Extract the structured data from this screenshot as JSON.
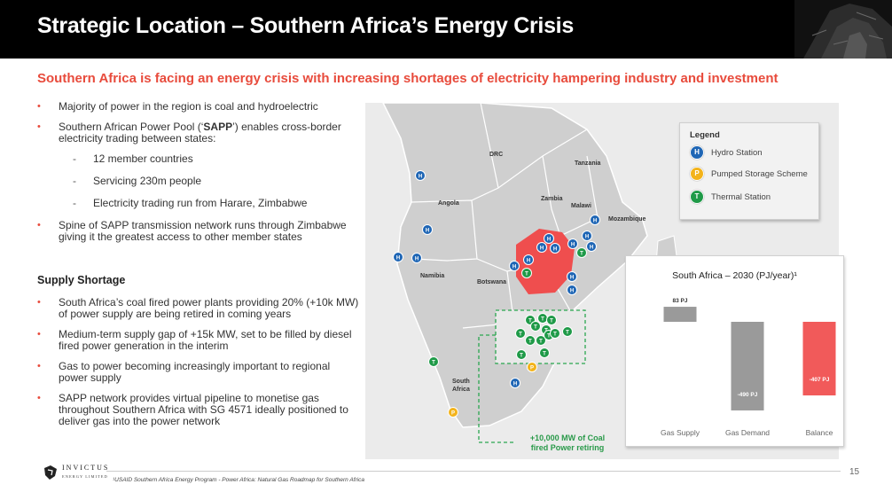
{
  "header": {
    "title": "Strategic Location – Southern Africa’s Energy Crisis"
  },
  "subtitle": "Southern Africa is facing an energy crisis with increasing shortages of electricity hampering industry and investment",
  "bullets": {
    "b1": "Majority of power in the region is coal and hydroelectric",
    "b2_pre": "Southern African Power Pool (‘",
    "b2_bold": "SAPP",
    "b2_post": "’) enables cross-border electricity trading between states:",
    "sub1": "12 member countries",
    "sub2": "Servicing 230m people",
    "sub3": "Electricity trading run from Harare, Zimbabwe",
    "b3": "Spine of SAPP transmission network runs through Zimbabwe giving it the greatest access to other member states",
    "supply_heading": "Supply Shortage",
    "s1": "South Africa’s coal fired power plants providing 20% (+10k MW) of power supply are being retired in coming years",
    "s2": "Medium-term supply gap of +15k MW, set to be filled by diesel fired power generation in the interim",
    "s3": "Gas to power becoming increasingly important to regional power supply",
    "s4": "SAPP network provides virtual pipeline to monetise gas throughout Southern Africa with SG 4571 ideally positioned to deliver gas into the power network"
  },
  "map": {
    "labels": {
      "drc": "DRC",
      "tanzania": "Tanzania",
      "angola": "Angola",
      "zambia": "Zambia",
      "malawi": "Malawi",
      "mozambique": "Mozambique",
      "namibia": "Namibia",
      "botswana": "Botswana",
      "south_africa_1": "South",
      "south_africa_2": "Africa"
    },
    "hydro_letter": "H",
    "pump_letter": "P",
    "thermal_letter": "T",
    "coal_note_1": "+10,000 MW of Coal",
    "coal_note_2": "fired Power retiring"
  },
  "legend": {
    "title": "Legend",
    "hydro": "Hydro Station",
    "pump": "Pumped Storage Scheme",
    "thermal": "Thermal Station"
  },
  "chart_data": {
    "type": "bar",
    "title": "South Africa – 2030 (PJ/year)¹",
    "categories": [
      "Gas Supply",
      "Gas Demand",
      "Balance"
    ],
    "values": [
      83,
      -490,
      -407
    ],
    "data_labels": [
      "83 PJ",
      "-490 PJ",
      "-407 PJ"
    ],
    "colors": [
      "#9a9a9a",
      "#9a9a9a",
      "#f15a5a"
    ],
    "ylim": [
      -500,
      100
    ],
    "grid": false,
    "legend": "none"
  },
  "footer": {
    "logo_name": "INVICTUS",
    "logo_sub": "ENERGY LIMITED",
    "footnote": "¹USAID Southern Africa Energy Program - Power Africa: Natural Gas Roadmap for Southern Africa",
    "page_number": "15"
  }
}
